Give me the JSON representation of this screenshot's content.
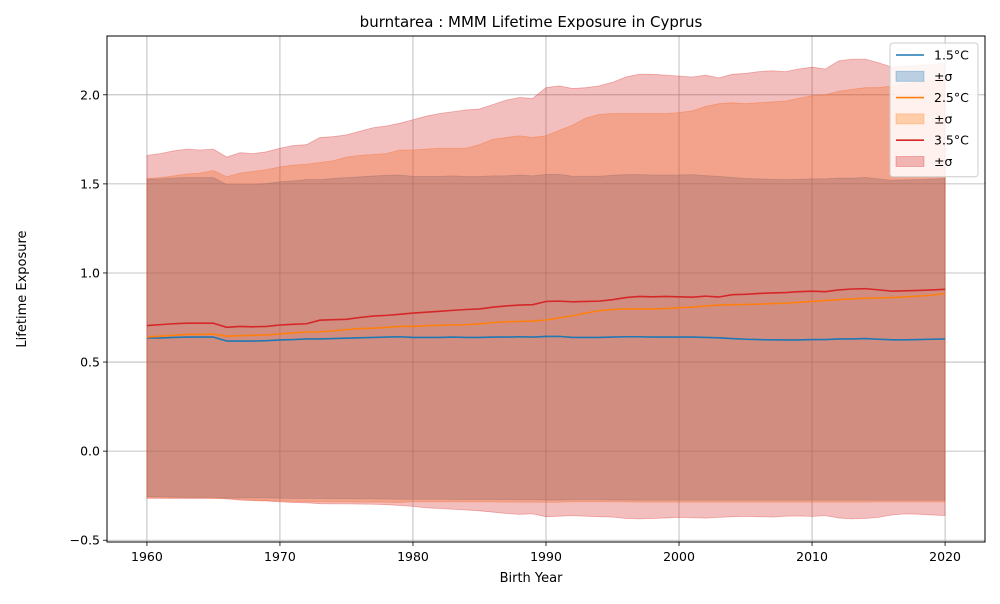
{
  "chart_data": {
    "type": "area",
    "title": "burntarea : MMM Lifetime Exposure in Cyprus",
    "xlabel": "Birth Year",
    "ylabel": "Lifetime Exposure",
    "xlim": [
      1957,
      2023
    ],
    "ylim": [
      -0.51,
      2.33
    ],
    "xticks": [
      1960,
      1970,
      1980,
      1990,
      2000,
      2010,
      2020
    ],
    "xtick_labels": [
      "1960",
      "1970",
      "1980",
      "1990",
      "2000",
      "2010",
      "2020"
    ],
    "yticks": [
      -0.5,
      0.0,
      0.5,
      1.0,
      1.5,
      2.0
    ],
    "ytick_labels": [
      "−0.5",
      "0.0",
      "0.5",
      "1.0",
      "1.5",
      "2.0"
    ],
    "grid": true,
    "legend_position": "top-right",
    "legend": [
      {
        "label": "1.5°C",
        "kind": "line",
        "series": 0
      },
      {
        "label": "±σ",
        "kind": "band",
        "series": 0
      },
      {
        "label": "2.5°C",
        "kind": "line",
        "series": 1
      },
      {
        "label": "±σ",
        "kind": "band",
        "series": 1
      },
      {
        "label": "3.5°C",
        "kind": "line",
        "series": 2
      },
      {
        "label": "±σ",
        "kind": "band",
        "series": 2
      }
    ],
    "x": [
      1960,
      1961,
      1962,
      1963,
      1964,
      1965,
      1966,
      1967,
      1968,
      1969,
      1970,
      1971,
      1972,
      1973,
      1974,
      1975,
      1976,
      1977,
      1978,
      1979,
      1980,
      1981,
      1982,
      1983,
      1984,
      1985,
      1986,
      1987,
      1988,
      1989,
      1990,
      1991,
      1992,
      1993,
      1994,
      1995,
      1996,
      1997,
      1998,
      1999,
      2000,
      2001,
      2002,
      2003,
      2004,
      2005,
      2006,
      2007,
      2008,
      2009,
      2010,
      2011,
      2012,
      2013,
      2014,
      2015,
      2016,
      2017,
      2018,
      2019,
      2020
    ],
    "series": [
      {
        "name": "1.5°C",
        "color": "#1f77b4",
        "band_color": "#aec7e8",
        "mean": [
          0.635,
          0.635,
          0.638,
          0.64,
          0.64,
          0.64,
          0.618,
          0.618,
          0.618,
          0.62,
          0.624,
          0.626,
          0.63,
          0.63,
          0.632,
          0.634,
          0.636,
          0.638,
          0.64,
          0.642,
          0.638,
          0.638,
          0.638,
          0.64,
          0.638,
          0.638,
          0.64,
          0.64,
          0.642,
          0.64,
          0.644,
          0.644,
          0.638,
          0.638,
          0.638,
          0.64,
          0.642,
          0.642,
          0.64,
          0.64,
          0.64,
          0.64,
          0.638,
          0.636,
          0.632,
          0.628,
          0.626,
          0.625,
          0.624,
          0.624,
          0.626,
          0.626,
          0.63,
          0.63,
          0.632,
          0.628,
          0.625,
          0.625,
          0.626,
          0.628,
          0.63
        ],
        "lower": [
          -0.255,
          -0.256,
          -0.258,
          -0.259,
          -0.259,
          -0.259,
          -0.262,
          -0.262,
          -0.262,
          -0.263,
          -0.264,
          -0.265,
          -0.266,
          -0.266,
          -0.267,
          -0.267,
          -0.268,
          -0.268,
          -0.269,
          -0.27,
          -0.27,
          -0.27,
          -0.27,
          -0.271,
          -0.271,
          -0.271,
          -0.272,
          -0.272,
          -0.273,
          -0.273,
          -0.274,
          -0.274,
          -0.273,
          -0.273,
          -0.273,
          -0.274,
          -0.274,
          -0.275,
          -0.275,
          -0.275,
          -0.275,
          -0.275,
          -0.275,
          -0.275,
          -0.275,
          -0.275,
          -0.275,
          -0.275,
          -0.275,
          -0.275,
          -0.275,
          -0.275,
          -0.275,
          -0.275,
          -0.275,
          -0.275,
          -0.275,
          -0.275,
          -0.275,
          -0.275,
          -0.275
        ],
        "upper": [
          1.525,
          1.528,
          1.533,
          1.536,
          1.536,
          1.536,
          1.496,
          1.496,
          1.496,
          1.502,
          1.512,
          1.517,
          1.524,
          1.524,
          1.53,
          1.535,
          1.539,
          1.544,
          1.548,
          1.55,
          1.542,
          1.542,
          1.542,
          1.545,
          1.541,
          1.541,
          1.545,
          1.545,
          1.55,
          1.545,
          1.553,
          1.553,
          1.543,
          1.543,
          1.543,
          1.548,
          1.552,
          1.552,
          1.55,
          1.55,
          1.55,
          1.552,
          1.546,
          1.542,
          1.536,
          1.53,
          1.528,
          1.526,
          1.524,
          1.526,
          1.528,
          1.528,
          1.532,
          1.532,
          1.536,
          1.528,
          1.52,
          1.522,
          1.524,
          1.527,
          1.53
        ]
      },
      {
        "name": "2.5°C",
        "color": "#ff7f0e",
        "band_color": "#ffbb78",
        "mean": [
          0.64,
          0.645,
          0.65,
          0.655,
          0.655,
          0.657,
          0.645,
          0.648,
          0.65,
          0.652,
          0.658,
          0.664,
          0.668,
          0.67,
          0.675,
          0.682,
          0.688,
          0.69,
          0.694,
          0.7,
          0.7,
          0.704,
          0.706,
          0.708,
          0.71,
          0.714,
          0.722,
          0.726,
          0.728,
          0.73,
          0.736,
          0.748,
          0.76,
          0.775,
          0.788,
          0.795,
          0.798,
          0.798,
          0.798,
          0.8,
          0.805,
          0.808,
          0.815,
          0.82,
          0.822,
          0.823,
          0.825,
          0.828,
          0.83,
          0.835,
          0.84,
          0.845,
          0.85,
          0.855,
          0.858,
          0.86,
          0.862,
          0.866,
          0.87,
          0.875,
          0.885
        ],
        "lower": [
          -0.26,
          -0.261,
          -0.262,
          -0.263,
          -0.263,
          -0.264,
          -0.265,
          -0.27,
          -0.275,
          -0.278,
          -0.28,
          -0.282,
          -0.283,
          -0.284,
          -0.285,
          -0.285,
          -0.286,
          -0.286,
          -0.287,
          -0.288,
          -0.284,
          -0.284,
          -0.284,
          -0.284,
          -0.285,
          -0.285,
          -0.285,
          -0.286,
          -0.286,
          -0.287,
          -0.287,
          -0.287,
          -0.284,
          -0.284,
          -0.284,
          -0.285,
          -0.285,
          -0.286,
          -0.286,
          -0.286,
          -0.286,
          -0.286,
          -0.286,
          -0.286,
          -0.286,
          -0.286,
          -0.286,
          -0.286,
          -0.286,
          -0.286,
          -0.286,
          -0.286,
          -0.286,
          -0.286,
          -0.286,
          -0.285,
          -0.285,
          -0.285,
          -0.285,
          -0.285,
          -0.285
        ],
        "upper": [
          1.53,
          1.535,
          1.545,
          1.555,
          1.56,
          1.575,
          1.54,
          1.56,
          1.57,
          1.58,
          1.595,
          1.605,
          1.61,
          1.62,
          1.63,
          1.65,
          1.66,
          1.665,
          1.67,
          1.69,
          1.69,
          1.695,
          1.7,
          1.7,
          1.7,
          1.72,
          1.75,
          1.76,
          1.77,
          1.76,
          1.77,
          1.8,
          1.83,
          1.87,
          1.89,
          1.895,
          1.895,
          1.895,
          1.895,
          1.895,
          1.9,
          1.91,
          1.935,
          1.95,
          1.955,
          1.95,
          1.955,
          1.96,
          1.965,
          1.98,
          1.995,
          2.0,
          2.02,
          2.03,
          2.04,
          2.04,
          2.05,
          2.06,
          2.07,
          2.08,
          2.1
        ]
      },
      {
        "name": "3.5°C",
        "color": "#d62728",
        "band_color": "#f1b0b0",
        "mean": [
          0.705,
          0.71,
          0.715,
          0.718,
          0.718,
          0.718,
          0.695,
          0.7,
          0.698,
          0.7,
          0.708,
          0.712,
          0.715,
          0.735,
          0.738,
          0.74,
          0.75,
          0.758,
          0.762,
          0.768,
          0.775,
          0.78,
          0.785,
          0.79,
          0.795,
          0.798,
          0.808,
          0.815,
          0.82,
          0.822,
          0.84,
          0.842,
          0.838,
          0.84,
          0.842,
          0.85,
          0.862,
          0.868,
          0.866,
          0.868,
          0.866,
          0.864,
          0.87,
          0.865,
          0.878,
          0.88,
          0.885,
          0.888,
          0.89,
          0.895,
          0.898,
          0.895,
          0.905,
          0.91,
          0.912,
          0.905,
          0.898,
          0.9,
          0.902,
          0.905,
          0.908
        ],
        "lower": [
          -0.265,
          -0.265,
          -0.265,
          -0.265,
          -0.265,
          -0.265,
          -0.268,
          -0.275,
          -0.278,
          -0.28,
          -0.285,
          -0.288,
          -0.29,
          -0.295,
          -0.296,
          -0.296,
          -0.297,
          -0.298,
          -0.3,
          -0.305,
          -0.31,
          -0.318,
          -0.322,
          -0.326,
          -0.33,
          -0.335,
          -0.342,
          -0.35,
          -0.355,
          -0.352,
          -0.368,
          -0.365,
          -0.362,
          -0.365,
          -0.368,
          -0.37,
          -0.378,
          -0.38,
          -0.378,
          -0.375,
          -0.372,
          -0.374,
          -0.376,
          -0.372,
          -0.368,
          -0.366,
          -0.368,
          -0.37,
          -0.365,
          -0.364,
          -0.366,
          -0.362,
          -0.375,
          -0.38,
          -0.378,
          -0.372,
          -0.358,
          -0.352,
          -0.354,
          -0.358,
          -0.362
        ],
        "upper": [
          1.66,
          1.67,
          1.685,
          1.695,
          1.69,
          1.695,
          1.65,
          1.675,
          1.67,
          1.68,
          1.7,
          1.715,
          1.72,
          1.76,
          1.765,
          1.775,
          1.795,
          1.815,
          1.825,
          1.84,
          1.86,
          1.88,
          1.895,
          1.905,
          1.915,
          1.92,
          1.945,
          1.97,
          1.985,
          1.98,
          2.04,
          2.05,
          2.035,
          2.04,
          2.05,
          2.07,
          2.1,
          2.115,
          2.115,
          2.11,
          2.105,
          2.1,
          2.11,
          2.095,
          2.115,
          2.12,
          2.13,
          2.135,
          2.13,
          2.145,
          2.155,
          2.145,
          2.19,
          2.2,
          2.2,
          2.18,
          2.155,
          2.16,
          2.165,
          2.17,
          2.18
        ]
      }
    ]
  }
}
